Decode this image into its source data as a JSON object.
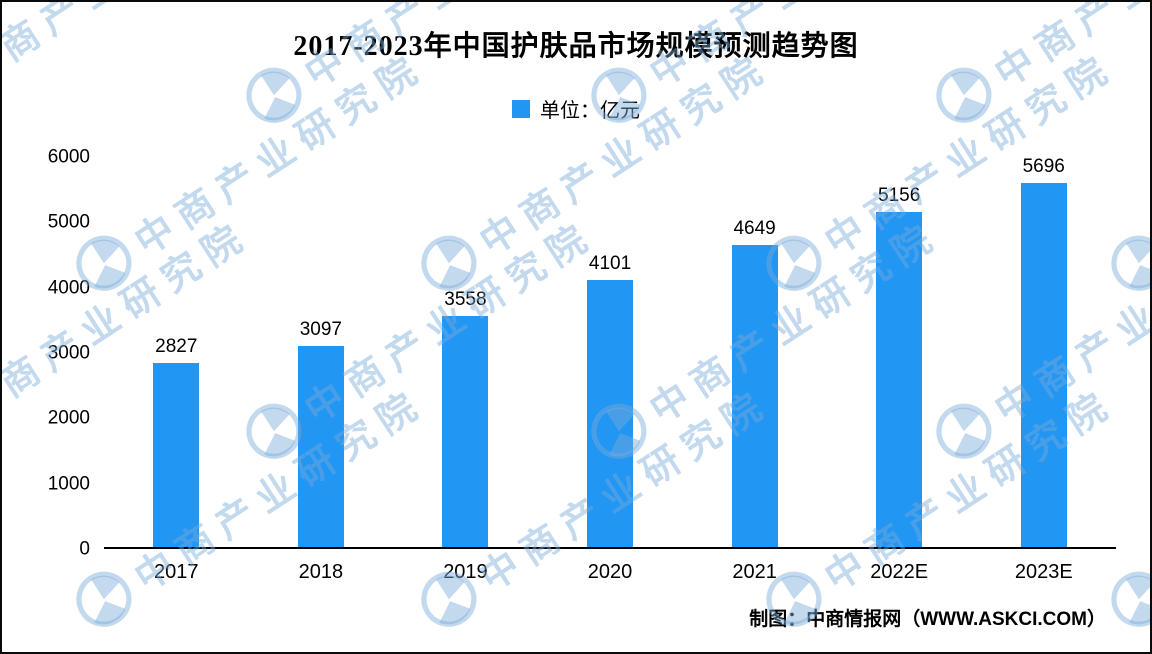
{
  "title": "2017-2023年中国护肤品市场规模预测趋势图",
  "legend": {
    "label": "单位：亿元",
    "color": "#2196F3"
  },
  "footer": "制图：中商情报网（WWW.ASKCI.COM）",
  "watermark": {
    "text": "中商产业研究院"
  },
  "chart_data": {
    "type": "bar",
    "title": "2017-2023年中国护肤品市场规模预测趋势图",
    "categories": [
      "2017",
      "2018",
      "2019",
      "2020",
      "2021",
      "2022E",
      "2023E"
    ],
    "values": [
      2827,
      3097,
      3558,
      4101,
      4649,
      5156,
      5696
    ],
    "xlabel": "",
    "ylabel": "",
    "unit_label": "单位：亿元",
    "ylim": [
      0,
      6000
    ],
    "yticks": [
      0,
      1000,
      2000,
      3000,
      4000,
      5000,
      6000
    ],
    "bar_color": "#2196F3",
    "grid": false,
    "legend_position": "top-center"
  }
}
